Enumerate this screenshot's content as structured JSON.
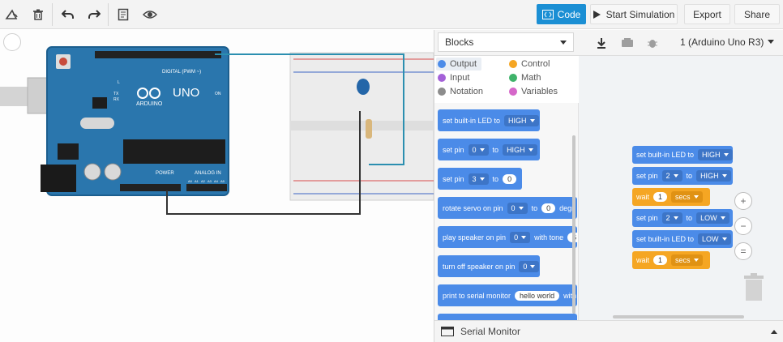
{
  "toolbar": {
    "code_label": "Code",
    "simulation_label": "Start Simulation",
    "export_label": "Export",
    "share_label": "Share",
    "accent_color": "#1b8fd4"
  },
  "board": {
    "brand": "ARDUINO",
    "model": "UNO",
    "digital_label": "DIGITAL (PWM ~)",
    "power_label": "POWER",
    "analog_label": "ANALOG IN",
    "on_label": "ON",
    "l_label": "L",
    "tx_label": "TX",
    "rx_label": "RX",
    "pin_a0": "A0",
    "pin_a1": "A1",
    "pin_a2": "A2",
    "pin_a3": "A3",
    "pin_a4": "A4",
    "pin_a5": "A5"
  },
  "code_panel": {
    "mode_label": "Blocks",
    "device_label": "1 (Arduino Uno R3)",
    "categories": [
      {
        "label": "Output",
        "color": "#4b8be8"
      },
      {
        "label": "Control",
        "color": "#f5a623"
      },
      {
        "label": "Input",
        "color": "#a461d8"
      },
      {
        "label": "Math",
        "color": "#3fb36a"
      },
      {
        "label": "Notation",
        "color": "#8c8c8c"
      },
      {
        "label": "Variables",
        "color": "#d567c9"
      }
    ],
    "palette": {
      "b1_text": "set built-in LED to",
      "b1_value": "HIGH",
      "b2_text": "set pin",
      "b2_pin": "0",
      "b2_to": "to",
      "b2_value": "HIGH",
      "b3_text": "set pin",
      "b3_pin": "3",
      "b3_to": "to",
      "b3_value": "0",
      "b4_text": "rotate servo on pin",
      "b4_pin": "0",
      "b4_to": "to",
      "b4_value": "0",
      "b4_tail": "degr",
      "b5_text": "play speaker on pin",
      "b5_pin": "0",
      "b5_tone": "with tone",
      "b5_value": "6",
      "b6_text": "turn off speaker on pin",
      "b6_pin": "0",
      "b7_text": "print to serial monitor",
      "b7_value": "hello world",
      "b7_tail": "with"
    },
    "workspace": {
      "w1_text": "set built-in LED to",
      "w1_value": "HIGH",
      "w2_text": "set pin",
      "w2_pin": "2",
      "w2_to": "to",
      "w2_value": "HIGH",
      "w3_text": "wait",
      "w3_value": "1",
      "w3_unit": "secs",
      "w4_text": "set pin",
      "w4_pin": "2",
      "w4_to": "to",
      "w4_value": "LOW",
      "w5_text": "set built-in LED to",
      "w5_value": "LOW",
      "w6_text": "wait",
      "w6_value": "1",
      "w6_unit": "secs"
    },
    "serial_label": "Serial Monitor"
  }
}
